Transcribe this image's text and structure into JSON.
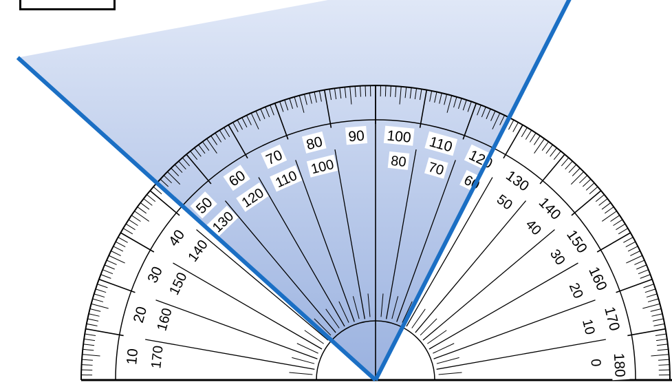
{
  "diagram": {
    "type": "protractor",
    "outer_scale_labels": [
      "0",
      "10",
      "20",
      "30",
      "40",
      "50",
      "60",
      "70",
      "80",
      "90",
      "100",
      "110",
      "120",
      "130",
      "140",
      "150",
      "160",
      "170",
      "180"
    ],
    "inner_scale_labels": [
      "180",
      "170",
      "160",
      "150",
      "140",
      "130",
      "120",
      "110",
      "100",
      "90",
      "80",
      "70",
      "60",
      "50",
      "40",
      "30",
      "20",
      "10",
      "0"
    ],
    "angle": {
      "ray1_direction_deg": 138,
      "ray2_direction_deg": 63,
      "fill_color": "#b7c8ea",
      "ray_color": "#1b6fc4"
    }
  }
}
